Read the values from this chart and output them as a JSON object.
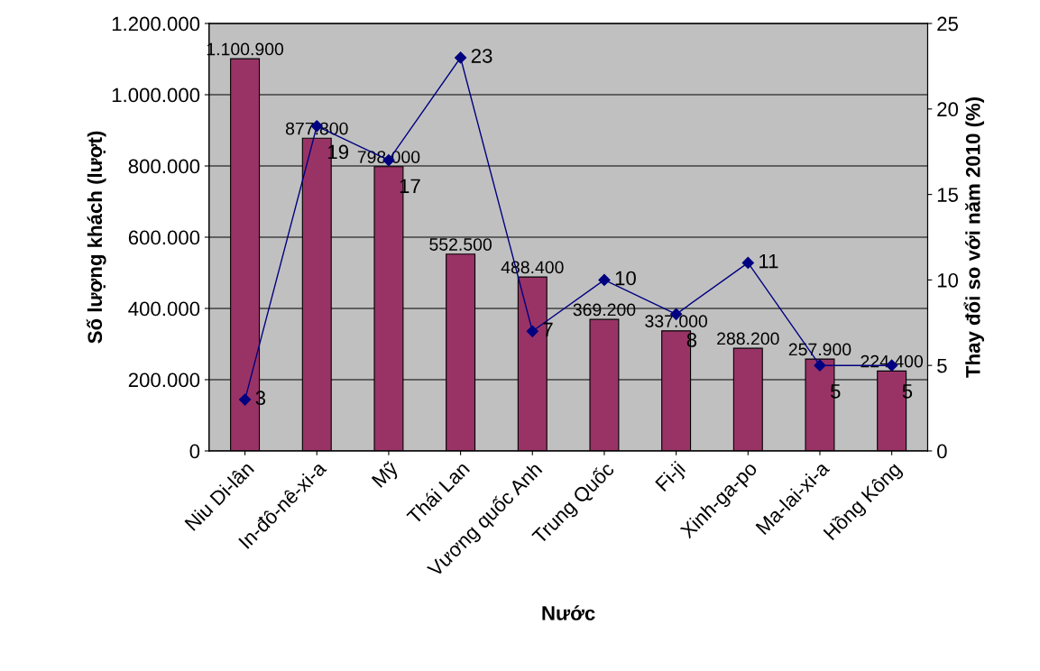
{
  "chart_data": {
    "type": "bar",
    "xlabel": "Nước",
    "ylabel": "Số lượng khách (lượt)",
    "y2label": "Thay đổi so với năm 2010 (%)",
    "categories": [
      "Niu Di-lân",
      "In-đô-nê-xi-a",
      "Mỹ",
      "Thái Lan",
      "Vương quốc Anh",
      "Trung Quốc",
      "Fi-ji",
      "Xinh-ga-po",
      "Ma-lai-xi-a",
      "Hồng Kông"
    ],
    "series": [
      {
        "color": "#993366",
        "values": [
          1100900,
          877800,
          798000,
          552500,
          488400,
          369200,
          337000,
          288200,
          257900,
          224400
        ],
        "value_labels": [
          "1.100.900",
          "877.800",
          "798.000",
          "552.500",
          "488.400",
          "369.200",
          "337.000",
          "288.200",
          "257.900",
          "224.400"
        ]
      },
      {
        "type": "line",
        "axis": "y2",
        "color": "#000080",
        "marker": "diamond",
        "values": [
          3,
          19,
          17,
          23,
          7,
          10,
          8,
          11,
          5,
          5
        ],
        "value_labels": [
          "3",
          "19",
          "17",
          "23",
          "7",
          "10",
          "8",
          "11",
          "5",
          "5"
        ]
      }
    ],
    "ylim": [
      0,
      1200000
    ],
    "yticks": [
      {
        "value": 0,
        "label": "0"
      },
      {
        "value": 200000,
        "label": "200.000"
      },
      {
        "value": 400000,
        "label": "400.000"
      },
      {
        "value": 600000,
        "label": "600.000"
      },
      {
        "value": 800000,
        "label": "800.000"
      },
      {
        "value": 1000000,
        "label": "1.000.000"
      },
      {
        "value": 1200000,
        "label": "1.200.000"
      }
    ],
    "y2lim": [
      0,
      25
    ],
    "y2ticks": [
      0,
      5,
      10,
      15,
      20,
      25
    ],
    "grid": "y",
    "legend": false
  }
}
